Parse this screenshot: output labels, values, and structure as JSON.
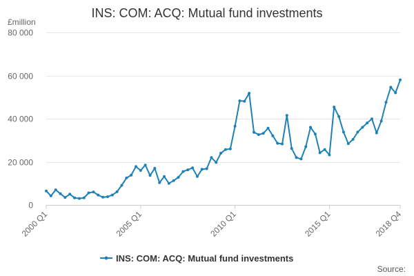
{
  "chart_data": {
    "type": "line",
    "title": "INS: COM: ACQ: Mutual fund investments",
    "ylabel": "£million",
    "xlabel": "",
    "ylim": [
      0,
      80000
    ],
    "yticks": [
      0,
      20000,
      40000,
      60000,
      80000
    ],
    "ytick_labels": [
      "0",
      "20 000",
      "40 000",
      "60 000",
      "80 000"
    ],
    "xtick_labels": [
      "2000 Q1",
      "2005 Q1",
      "2010 Q1",
      "2015 Q1",
      "2018 Q4"
    ],
    "grid": "horizontal",
    "legend_position": "bottom",
    "series": [
      {
        "name": "INS: COM: ACQ: Mutual fund investments",
        "color": "#1d81b8",
        "x": [
          "2000 Q1",
          "2000 Q2",
          "2000 Q3",
          "2000 Q4",
          "2001 Q1",
          "2001 Q2",
          "2001 Q3",
          "2001 Q4",
          "2002 Q1",
          "2002 Q2",
          "2002 Q3",
          "2002 Q4",
          "2003 Q1",
          "2003 Q2",
          "2003 Q3",
          "2003 Q4",
          "2004 Q1",
          "2004 Q2",
          "2004 Q3",
          "2004 Q4",
          "2005 Q1",
          "2005 Q2",
          "2005 Q3",
          "2005 Q4",
          "2006 Q1",
          "2006 Q2",
          "2006 Q3",
          "2006 Q4",
          "2007 Q1",
          "2007 Q2",
          "2007 Q3",
          "2007 Q4",
          "2008 Q1",
          "2008 Q2",
          "2008 Q3",
          "2008 Q4",
          "2009 Q1",
          "2009 Q2",
          "2009 Q3",
          "2009 Q4",
          "2010 Q1",
          "2010 Q2",
          "2010 Q3",
          "2010 Q4",
          "2011 Q1",
          "2011 Q2",
          "2011 Q3",
          "2011 Q4",
          "2012 Q1",
          "2012 Q2",
          "2012 Q3",
          "2012 Q4",
          "2013 Q1",
          "2013 Q2",
          "2013 Q3",
          "2013 Q4",
          "2014 Q1",
          "2014 Q2",
          "2014 Q3",
          "2014 Q4",
          "2015 Q1",
          "2015 Q2",
          "2015 Q3",
          "2015 Q4",
          "2016 Q1",
          "2016 Q2",
          "2016 Q3",
          "2016 Q4",
          "2017 Q1",
          "2017 Q2",
          "2017 Q3",
          "2017 Q4",
          "2018 Q1",
          "2018 Q2",
          "2018 Q3",
          "2018 Q4"
        ],
        "values": [
          6500,
          4200,
          7000,
          5200,
          3500,
          5000,
          3300,
          3000,
          3300,
          5600,
          6000,
          4600,
          3600,
          3800,
          4600,
          6100,
          9100,
          12500,
          13800,
          17800,
          16000,
          18500,
          13700,
          17000,
          10300,
          13200,
          10000,
          11300,
          12800,
          15500,
          16300,
          17200,
          13200,
          16500,
          16800,
          22000,
          19700,
          24000,
          25700,
          26000,
          36500,
          48300,
          48100,
          51800,
          33700,
          32600,
          33200,
          35600,
          32100,
          28600,
          28300,
          41500,
          26200,
          22000,
          21300,
          27000,
          36000,
          32900,
          24200,
          25700,
          23200,
          45400,
          41000,
          33800,
          28400,
          30400,
          33800,
          36000,
          38000,
          39900,
          33400,
          38900,
          47600,
          54600,
          52000,
          58000
        ]
      }
    ],
    "legend": {
      "label": "INS: COM: ACQ: Mutual fund investments"
    },
    "source": "Source:"
  }
}
